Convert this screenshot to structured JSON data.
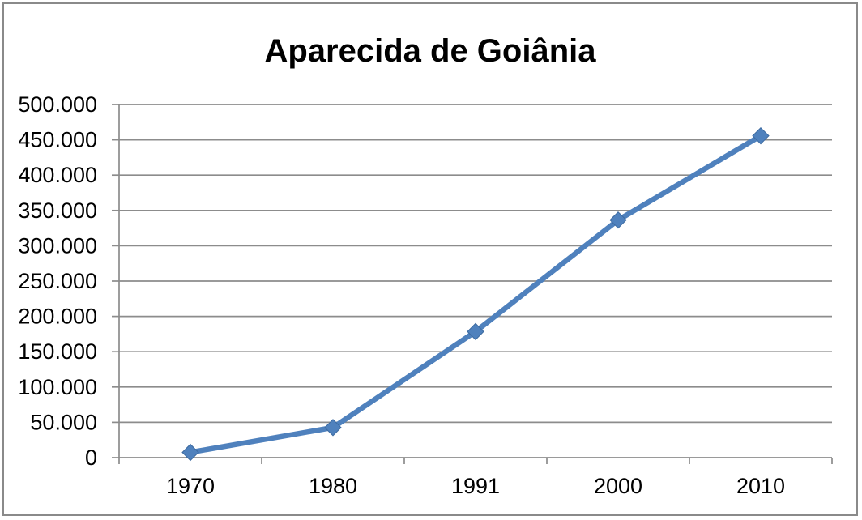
{
  "colors": {
    "line": "#4F81BD",
    "marker": "#4F81BD",
    "marker_edge": "#3C6AA0",
    "grid": "#8C8C8C",
    "axis": "#8C8C8C",
    "frame_border": "#8A8A8A",
    "tick_text": "#000000",
    "title_text": "#000000"
  },
  "chart_data": {
    "type": "line",
    "title": "Aparecida de Goiânia",
    "categories": [
      "1970",
      "1980",
      "1991",
      "2000",
      "2010"
    ],
    "series": [
      {
        "name": "Aparecida de Goiânia",
        "values": [
          7470,
          42627,
          178483,
          336392,
          455657
        ]
      }
    ],
    "xlabel": "",
    "ylabel": "",
    "ylim": [
      0,
      500000
    ],
    "ytick_step": 50000,
    "ytick_labels": [
      "0",
      "50.000",
      "100.000",
      "150.000",
      "200.000",
      "250.000",
      "300.000",
      "350.000",
      "400.000",
      "450.000",
      "500.000"
    ],
    "grid": true,
    "legend": "none",
    "marker": "diamond"
  }
}
